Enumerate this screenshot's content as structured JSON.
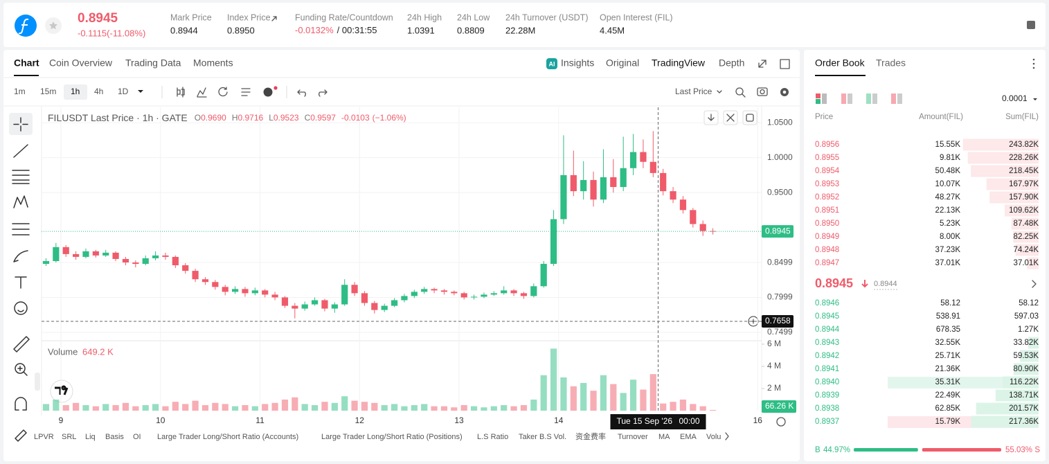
{
  "header": {
    "price": "0.8945",
    "change": "-0.1115(-11.08%)",
    "stats": [
      {
        "label": "Mark Price",
        "value": "0.8944"
      },
      {
        "label": "Index Price",
        "value": "0.8950"
      },
      {
        "label": "Funding Rate/Countdown",
        "value": "-0.0132%",
        "extra": "/ 00:31:55"
      },
      {
        "label": "24h High",
        "value": "1.0391"
      },
      {
        "label": "24h Low",
        "value": "0.8809"
      },
      {
        "label": "24h Turnover (USDT)",
        "value": "22.28M"
      },
      {
        "label": "Open Interest (FIL)",
        "value": "4.45M"
      }
    ]
  },
  "chart_tabs": [
    "Chart",
    "Coin Overview",
    "Trading Data",
    "Moments"
  ],
  "view_tabs": [
    "Insights",
    "Original",
    "TradingView",
    "Depth"
  ],
  "intervals": [
    "1m",
    "15m",
    "1h",
    "4h",
    "1D"
  ],
  "price_type": "Last Price",
  "chart_data": {
    "type": "candlestick",
    "title": "FILUSDT Last Price · 1h · GATE",
    "ohlc": [
      {
        "label": "O",
        "value": "0.9690"
      },
      {
        "label": "H",
        "value": "0.9716"
      },
      {
        "label": "L",
        "value": "0.9523"
      },
      {
        "label": "C",
        "value": "0.9597"
      }
    ],
    "change": "-0.0103",
    "change_pct": "(−1.06%)",
    "up_color": "#2ebd85",
    "down_color": "#ef5b6a",
    "x": [
      8.85,
      8.95,
      9.05,
      9.15,
      9.25,
      9.35,
      9.45,
      9.55,
      9.65,
      9.75,
      9.85,
      9.95,
      10.05,
      10.15,
      10.25,
      10.35,
      10.45,
      10.55,
      10.65,
      10.75,
      10.85,
      10.95,
      11.05,
      11.15,
      11.25,
      11.35,
      11.45,
      11.55,
      11.65,
      11.75,
      11.85,
      11.95,
      12.05,
      12.15,
      12.25,
      12.35,
      12.45,
      12.55,
      12.65,
      12.75,
      12.85,
      12.95,
      13.05,
      13.15,
      13.25,
      13.35,
      13.45,
      13.55,
      13.65,
      13.75,
      13.85,
      13.95,
      14.05,
      14.15,
      14.25,
      14.35,
      14.45,
      14.55,
      14.65,
      14.75,
      14.85,
      14.95,
      15.05,
      15.15,
      15.25,
      15.35,
      15.45,
      15.55
    ],
    "candles": [
      [
        0.848,
        0.856,
        0.845,
        0.852
      ],
      [
        0.852,
        0.878,
        0.85,
        0.872
      ],
      [
        0.872,
        0.875,
        0.858,
        0.862
      ],
      [
        0.862,
        0.866,
        0.854,
        0.858
      ],
      [
        0.858,
        0.87,
        0.856,
        0.866
      ],
      [
        0.866,
        0.868,
        0.857,
        0.86
      ],
      [
        0.86,
        0.868,
        0.858,
        0.864
      ],
      [
        0.864,
        0.866,
        0.852,
        0.855
      ],
      [
        0.855,
        0.858,
        0.846,
        0.85
      ],
      [
        0.85,
        0.853,
        0.843,
        0.848
      ],
      [
        0.848,
        0.86,
        0.846,
        0.856
      ],
      [
        0.856,
        0.866,
        0.853,
        0.86
      ],
      [
        0.86,
        0.864,
        0.854,
        0.858
      ],
      [
        0.858,
        0.86,
        0.842,
        0.846
      ],
      [
        0.846,
        0.849,
        0.834,
        0.838
      ],
      [
        0.838,
        0.841,
        0.822,
        0.826
      ],
      [
        0.826,
        0.829,
        0.818,
        0.822
      ],
      [
        0.822,
        0.825,
        0.811,
        0.815
      ],
      [
        0.815,
        0.818,
        0.803,
        0.808
      ],
      [
        0.808,
        0.816,
        0.805,
        0.812
      ],
      [
        0.812,
        0.815,
        0.801,
        0.806
      ],
      [
        0.806,
        0.814,
        0.803,
        0.81
      ],
      [
        0.81,
        0.812,
        0.8,
        0.804
      ],
      [
        0.804,
        0.808,
        0.796,
        0.8
      ],
      [
        0.8,
        0.802,
        0.785,
        0.788
      ],
      [
        0.788,
        0.792,
        0.77,
        0.784
      ],
      [
        0.784,
        0.794,
        0.781,
        0.79
      ],
      [
        0.79,
        0.8,
        0.788,
        0.796
      ],
      [
        0.796,
        0.798,
        0.78,
        0.784
      ],
      [
        0.784,
        0.793,
        0.778,
        0.79
      ],
      [
        0.79,
        0.826,
        0.788,
        0.818
      ],
      [
        0.818,
        0.822,
        0.802,
        0.806
      ],
      [
        0.806,
        0.809,
        0.788,
        0.792
      ],
      [
        0.792,
        0.795,
        0.777,
        0.782
      ],
      [
        0.782,
        0.791,
        0.779,
        0.788
      ],
      [
        0.788,
        0.799,
        0.786,
        0.796
      ],
      [
        0.796,
        0.805,
        0.793,
        0.802
      ],
      [
        0.802,
        0.811,
        0.799,
        0.808
      ],
      [
        0.808,
        0.815,
        0.805,
        0.812
      ],
      [
        0.812,
        0.814,
        0.806,
        0.81
      ],
      [
        0.81,
        0.812,
        0.804,
        0.808
      ],
      [
        0.808,
        0.81,
        0.803,
        0.806
      ],
      [
        0.806,
        0.808,
        0.797,
        0.8
      ],
      [
        0.8,
        0.804,
        0.797,
        0.801
      ],
      [
        0.801,
        0.807,
        0.799,
        0.804
      ],
      [
        0.804,
        0.809,
        0.802,
        0.806
      ],
      [
        0.806,
        0.816,
        0.804,
        0.81
      ],
      [
        0.81,
        0.812,
        0.802,
        0.806
      ],
      [
        0.806,
        0.808,
        0.798,
        0.802
      ],
      [
        0.802,
        0.82,
        0.8,
        0.816
      ],
      [
        0.816,
        0.852,
        0.814,
        0.848
      ],
      [
        0.848,
        0.925,
        0.845,
        0.912
      ],
      [
        0.912,
        1.032,
        0.905,
        0.975
      ],
      [
        0.975,
        1.01,
        0.945,
        0.952
      ],
      [
        0.952,
        0.995,
        0.94,
        0.968
      ],
      [
        0.968,
        0.98,
        0.93,
        0.94
      ],
      [
        0.94,
        1.012,
        0.935,
        0.972
      ],
      [
        0.972,
        0.998,
        0.95,
        0.958
      ],
      [
        0.958,
        1.03,
        0.952,
        0.985
      ],
      [
        0.985,
        1.034,
        0.975,
        1.008
      ],
      [
        1.008,
        1.026,
        0.985,
        0.994
      ],
      [
        0.994,
        1.038,
        0.972,
        0.978
      ],
      [
        0.978,
        0.984,
        0.946,
        0.952
      ],
      [
        0.952,
        0.958,
        0.935,
        0.94
      ],
      [
        0.94,
        0.945,
        0.92,
        0.925
      ],
      [
        0.925,
        0.928,
        0.9,
        0.905
      ],
      [
        0.905,
        0.91,
        0.888,
        0.895
      ],
      [
        0.895,
        0.899,
        0.89,
        0.8945
      ]
    ],
    "xlim": [
      8.805,
      16.04
    ],
    "xticks": [
      9,
      10,
      11,
      12,
      13,
      14,
      16
    ],
    "ylim": [
      0.738,
      1.072
    ],
    "yticks": [
      {
        "value": 1.05,
        "label": "1.0500"
      },
      {
        "value": 1.0,
        "label": "1.0000"
      },
      {
        "value": 0.95,
        "label": "0.9500"
      },
      {
        "value": 0.8499,
        "label": "0.8499"
      },
      {
        "value": 0.7999,
        "label": "0.7999"
      },
      {
        "value": 0.7499,
        "label": "0.7499"
      }
    ],
    "grid": true,
    "last_price": {
      "value": 0.8945,
      "label": "0.8945"
    },
    "crosshair": {
      "x": 15,
      "y": 0.7658,
      "y_label": "0.7658",
      "date_label": "Tue 15 Sep '26",
      "time_label": "00:00"
    },
    "volume": {
      "title": "Volume",
      "value_label": "649.2 K",
      "values": [
        0.6,
        1.0,
        0.5,
        0.7,
        0.5,
        0.4,
        0.6,
        0.5,
        0.7,
        0.4,
        0.5,
        0.6,
        0.4,
        0.8,
        0.6,
        0.9,
        0.5,
        0.7,
        0.6,
        0.4,
        0.5,
        0.4,
        0.6,
        0.7,
        1.0,
        1.2,
        0.6,
        0.5,
        0.8,
        0.7,
        1.3,
        0.9,
        0.8,
        0.7,
        0.5,
        0.6,
        0.4,
        0.5,
        0.6,
        0.4,
        0.4,
        0.3,
        0.5,
        0.4,
        0.3,
        0.4,
        0.5,
        0.4,
        0.5,
        1.0,
        3.2,
        5.6,
        3.0,
        2.2,
        2.5,
        1.8,
        3.2,
        2.4,
        1.6,
        2.8,
        1.9,
        3.3,
        0.6492,
        0.8,
        1.0,
        0.6,
        0.4,
        0.06626
      ],
      "ylim": [
        0,
        6.31
      ],
      "yticks": [
        {
          "value": 6,
          "label": "6 M"
        },
        {
          "value": 4,
          "label": "4 M"
        },
        {
          "value": 2,
          "label": "2 M"
        }
      ],
      "last_label": "66.26 K"
    }
  },
  "indicators": [
    "LPVR",
    "SRL",
    "Liq",
    "Basis",
    "OI",
    "Large Trader Long/Short Ratio (Accounts)",
    "Large Trader Long/Short Ratio (Positions)",
    "L.S Ratio",
    "Taker B.S Vol.",
    "资金费率",
    "Turnover",
    "MA",
    "EMA",
    "Volu"
  ],
  "order_book": {
    "tabs": [
      "Order Book",
      "Trades"
    ],
    "precision": "0.0001",
    "columns": [
      "Price",
      "Amount(FIL)",
      "Sum(FIL)"
    ],
    "asks": [
      {
        "price": "0.8956",
        "amount": "15.55K",
        "sum": {
          "value": 243820,
          "label": "243.82K"
        }
      },
      {
        "price": "0.8955",
        "amount": "9.81K",
        "sum": {
          "value": 228260,
          "label": "228.26K"
        }
      },
      {
        "price": "0.8954",
        "amount": "50.48K",
        "sum": {
          "value": 218450,
          "label": "218.45K"
        }
      },
      {
        "price": "0.8953",
        "amount": "10.07K",
        "sum": {
          "value": 167970,
          "label": "167.97K"
        }
      },
      {
        "price": "0.8952",
        "amount": "48.27K",
        "sum": {
          "value": 157900,
          "label": "157.90K"
        }
      },
      {
        "price": "0.8951",
        "amount": "22.13K",
        "sum": {
          "value": 109620,
          "label": "109.62K"
        }
      },
      {
        "price": "0.8950",
        "amount": "5.23K",
        "sum": {
          "value": 87480,
          "label": "87.48K"
        }
      },
      {
        "price": "0.8949",
        "amount": "8.00K",
        "sum": {
          "value": 82250,
          "label": "82.25K"
        }
      },
      {
        "price": "0.8948",
        "amount": "37.23K",
        "sum": {
          "value": 74240,
          "label": "74.24K"
        }
      },
      {
        "price": "0.8947",
        "amount": "37.01K",
        "sum": {
          "value": 37010,
          "label": "37.01K"
        }
      }
    ],
    "mid_price": "0.8945",
    "mark_price": "0.8944",
    "bids": [
      {
        "price": "0.8946",
        "amount": "58.12",
        "sum": 58.12
      },
      {
        "price": "0.8945",
        "amount": "538.91",
        "sum": 597.03
      },
      {
        "price": "0.8944",
        "amount": "678.35",
        "sum": {
          "value": 1270,
          "label": "1.27K"
        }
      },
      {
        "price": "0.8943",
        "amount": "32.55K",
        "sum": {
          "value": 33820,
          "label": "33.82K"
        }
      },
      {
        "price": "0.8942",
        "amount": "25.71K",
        "sum": {
          "value": 59530,
          "label": "59.53K"
        }
      },
      {
        "price": "0.8941",
        "amount": "21.36K",
        "sum": {
          "value": 80900,
          "label": "80.90K"
        }
      },
      {
        "price": "0.8940",
        "amount": "35.31K",
        "sum": {
          "value": 116220,
          "label": "116.22K"
        }
      },
      {
        "price": "0.8939",
        "amount": "22.49K",
        "sum": {
          "value": 138710,
          "label": "138.71K"
        }
      },
      {
        "price": "0.8938",
        "amount": "62.85K",
        "sum": {
          "value": 201570,
          "label": "201.57K"
        }
      },
      {
        "price": "0.8937",
        "amount": "15.79K",
        "sum": {
          "value": 217360,
          "label": "217.36K"
        }
      }
    ],
    "buy_letter": "B",
    "sell_letter": "S",
    "buy_ratio": {
      "value": 44.97,
      "label": "44.97%"
    },
    "sell_ratio": {
      "value": 55.03,
      "label": "55.03%"
    }
  }
}
